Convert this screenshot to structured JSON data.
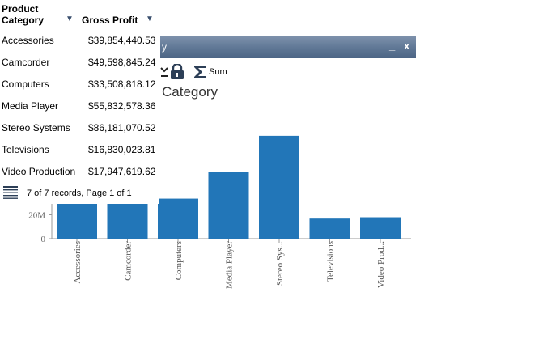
{
  "chart_window": {
    "title": "y",
    "minimize_label": "_",
    "close_label": "x",
    "sum_label": "Sum",
    "heading": "Category"
  },
  "grid": {
    "columns": [
      {
        "label_line1": "Product",
        "label_line2": "Category"
      },
      {
        "label_line1": "Gross Profit"
      }
    ],
    "sort_glyph": "▼",
    "rows": [
      {
        "category": "Accessories",
        "gross_profit": "$39,854,440.53"
      },
      {
        "category": "Camcorder",
        "gross_profit": "$49,598,845.24"
      },
      {
        "category": "Computers",
        "gross_profit": "$33,508,818.12"
      },
      {
        "category": "Media Player",
        "gross_profit": "$55,832,578.36"
      },
      {
        "category": "Stereo Systems",
        "gross_profit": "$86,181,070.52"
      },
      {
        "category": "Televisions",
        "gross_profit": "$16,830,023.81"
      },
      {
        "category": "Video Production",
        "gross_profit": "$17,947,619.62"
      }
    ],
    "footer": {
      "records": "7 of 7 records, Page ",
      "page": "1",
      "of": " of 1"
    }
  },
  "chart_data": {
    "type": "bar",
    "categories": [
      "Accessories",
      "Camcorder",
      "Computers",
      "Media Player",
      "Stereo Sys...",
      "Televisions",
      "Video Prod..."
    ],
    "values": [
      39854440.53,
      49598845.24,
      33508818.12,
      55832578.36,
      86181070.52,
      16830023.81,
      17947619.62
    ],
    "yticks": [
      {
        "value": 0,
        "label": "0"
      },
      {
        "value": 20000000,
        "label": "20M"
      }
    ],
    "ylim": [
      0,
      94000000
    ],
    "bar_color": "#2276b8",
    "grid": false
  }
}
